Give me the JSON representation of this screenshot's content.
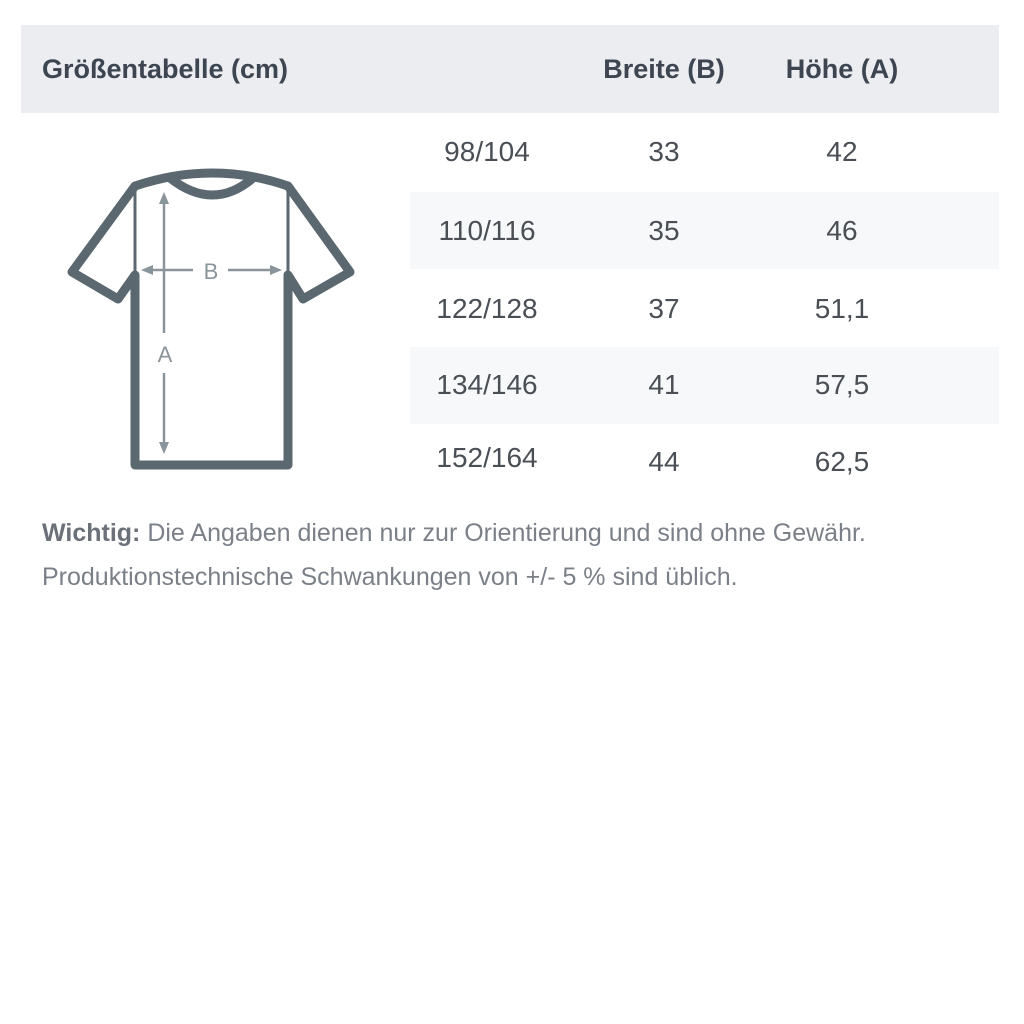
{
  "header": {
    "title": "Größentabelle (cm)",
    "col_width": "Breite (B)",
    "col_height": "Höhe (A)"
  },
  "diagram": {
    "label_b": "B",
    "label_a": "A",
    "shirt_color": "#5b6870",
    "arrow_color": "#8a949b"
  },
  "rows": [
    {
      "size": "98/104",
      "width": "33",
      "height": "42"
    },
    {
      "size": "110/116",
      "width": "35",
      "height": "46"
    },
    {
      "size": "122/128",
      "width": "37",
      "height": "51,1"
    },
    {
      "size": "134/146",
      "width": "41",
      "height": "57,5"
    },
    {
      "size": "152/164",
      "width": "44",
      "height": "62,5"
    }
  ],
  "note": {
    "label": "Wichtig:",
    "line1": "Die Angaben dienen nur zur Orientierung und sind ohne Gewähr.",
    "line2": "Produktionstechnische Schwankungen von +/- 5 % sind üblich."
  }
}
